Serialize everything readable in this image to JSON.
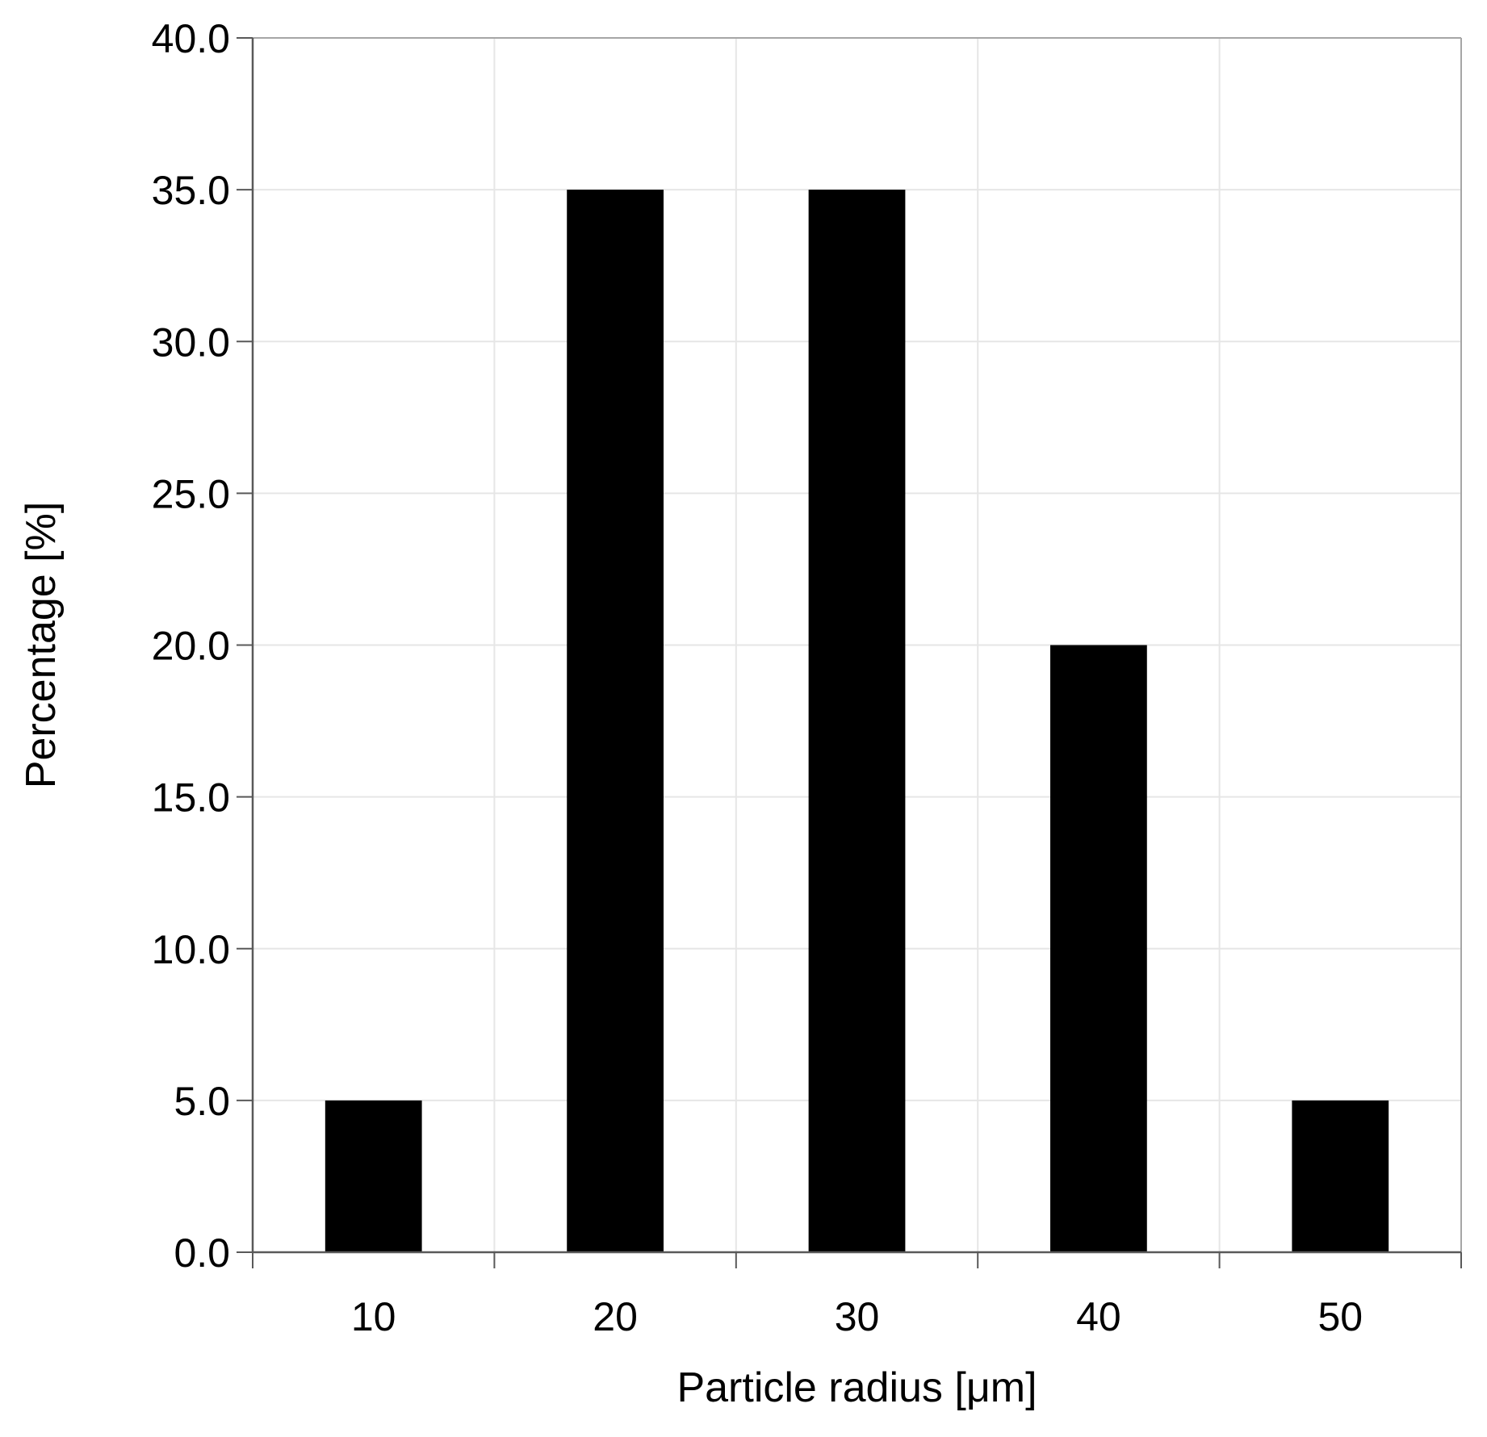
{
  "chart_data": {
    "type": "bar",
    "title": "",
    "categories": [
      "10",
      "20",
      "30",
      "40",
      "50"
    ],
    "values": [
      5.0,
      35.0,
      35.0,
      20.0,
      5.0
    ],
    "xlabel": "Particle radius [μm]",
    "ylabel": "Percentage [%]",
    "ylim": [
      0,
      40
    ],
    "yticks": [
      "0.0",
      "5.0",
      "10.0",
      "15.0",
      "20.0",
      "25.0",
      "30.0",
      "35.0",
      "40.0"
    ],
    "grid": true,
    "legend": "none",
    "colors": {
      "bar": "#000000",
      "grid": "#e6e6e6",
      "axis": "#595959",
      "frame": "#a6a6a6"
    }
  }
}
